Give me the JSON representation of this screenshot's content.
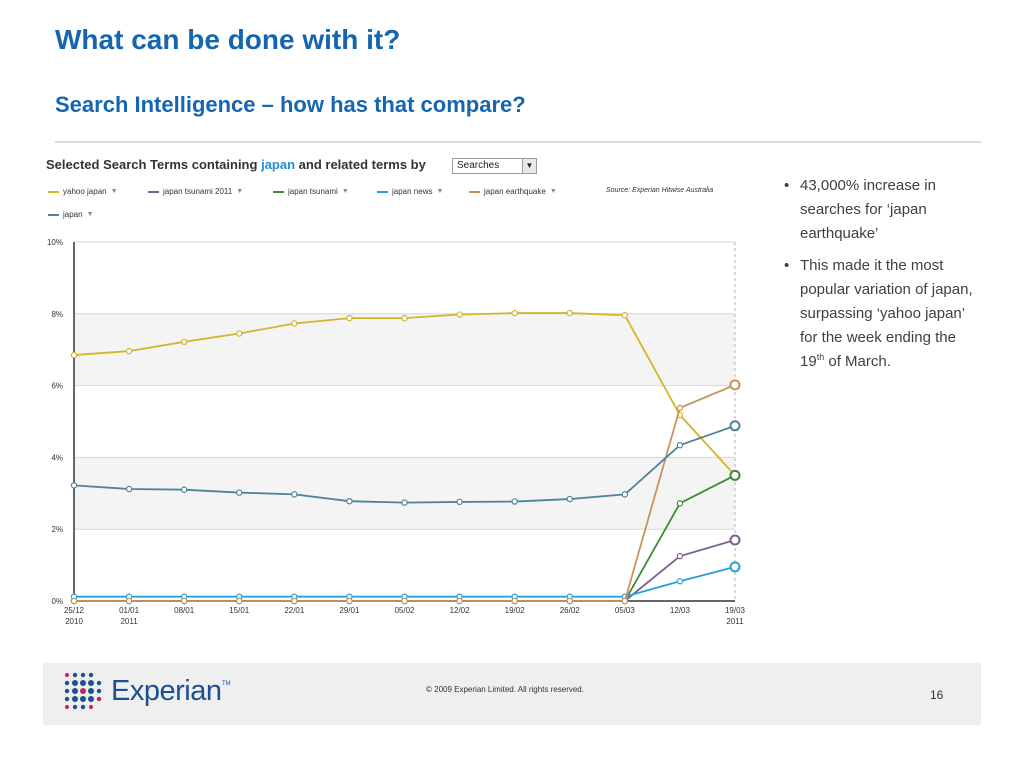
{
  "slide": {
    "title": "What can be done with it?",
    "subtitle": "Search Intelligence – how has that compare?"
  },
  "chart_header": {
    "prefix": "Selected Search Terms containing",
    "keyword": "japan",
    "suffix": "and related terms by",
    "select_value": "Searches",
    "source": "Source: Experian Hitwise Australia"
  },
  "chart_data": {
    "type": "line",
    "x": [
      "25/12\n2010",
      "01/01\n2011",
      "08/01",
      "15/01",
      "22/01",
      "29/01",
      "05/02",
      "12/02",
      "19/02",
      "26/02",
      "05/03",
      "12/03",
      "19/03\n2011"
    ],
    "ylim": [
      0,
      10
    ],
    "yticks": [
      "0%",
      "2%",
      "4%",
      "6%",
      "8%",
      "10%"
    ],
    "series": [
      {
        "name": "yahoo japan",
        "color": "#d4b52a",
        "values": [
          6.85,
          6.96,
          7.22,
          7.45,
          7.73,
          7.88,
          7.88,
          7.98,
          8.02,
          8.02,
          7.96,
          5.18,
          3.5
        ]
      },
      {
        "name": "japan tsunami 2011",
        "color": "#7b5e92",
        "values": [
          0,
          0,
          0,
          0,
          0,
          0,
          0,
          0,
          0,
          0,
          0,
          1.25,
          1.7
        ]
      },
      {
        "name": "japan tsunami",
        "color": "#3e8a35",
        "values": [
          0,
          0,
          0,
          0,
          0,
          0,
          0,
          0,
          0,
          0,
          0,
          2.72,
          3.5
        ]
      },
      {
        "name": "japan news",
        "color": "#29a0dc",
        "values": [
          0.12,
          0.12,
          0.12,
          0.12,
          0.12,
          0.12,
          0.12,
          0.12,
          0.12,
          0.12,
          0.12,
          0.55,
          0.95
        ]
      },
      {
        "name": "japan earthquake",
        "color": "#c8935a",
        "values": [
          0,
          0,
          0,
          0,
          0,
          0,
          0,
          0,
          0,
          0,
          0,
          5.38,
          6.02
        ]
      },
      {
        "name": "japan",
        "color": "#4f8396",
        "values": [
          3.22,
          3.12,
          3.1,
          3.02,
          2.97,
          2.78,
          2.74,
          2.76,
          2.77,
          2.84,
          2.97,
          4.34,
          4.88
        ]
      }
    ],
    "grid": true,
    "alternating_bands": true
  },
  "bullets": [
    {
      "text": "43,000% increase in searches for ‘japan earthquake’"
    },
    {
      "pre": "This made it the most popular variation of japan, surpassing ‘yahoo japan’ for the week ending the 19",
      "sup": "th",
      "post": " of March."
    }
  ],
  "footer": {
    "logo_text": "Experian",
    "logo_tm": "TM",
    "copyright": "© 2009 Experian Limited.  All rights reserved.",
    "page_number": "16"
  },
  "colors": {
    "title_blue": "#1565b0",
    "brand_blue": "#1d4f91",
    "brand_magenta": "#c8205e"
  }
}
